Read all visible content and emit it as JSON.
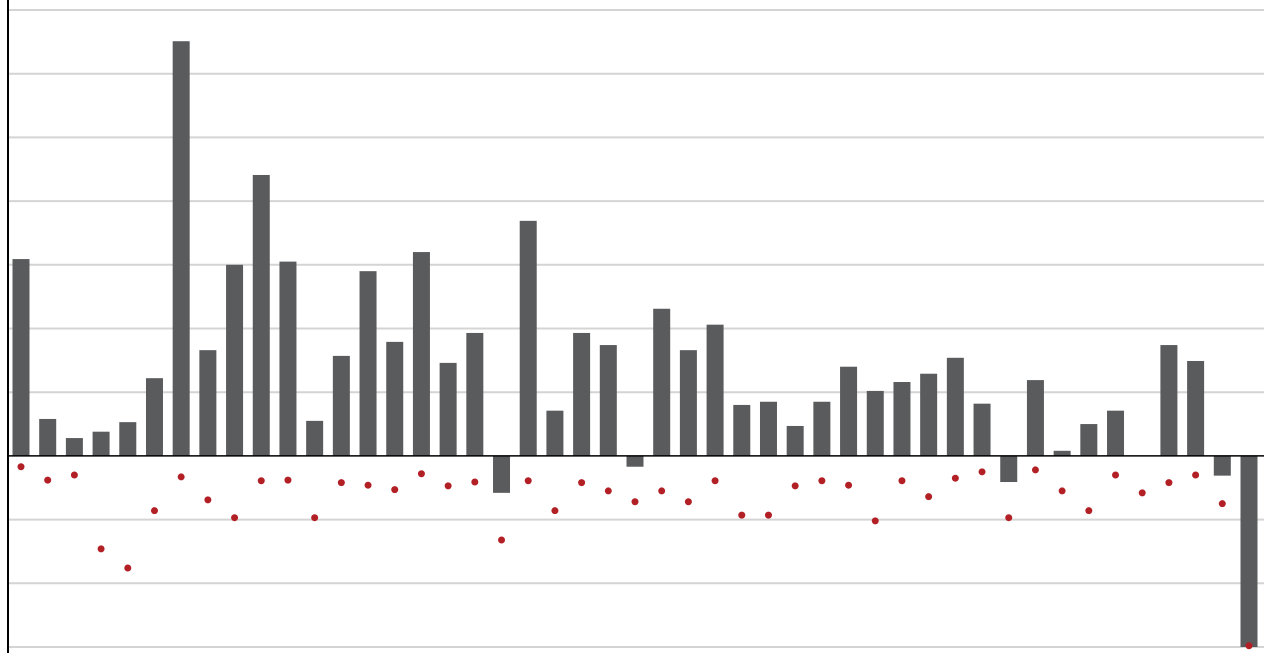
{
  "chart_data": {
    "type": "bar",
    "title": "",
    "xlabel": "",
    "ylabel": "",
    "ylim": [
      -3,
      7
    ],
    "grid": true,
    "legend": "none",
    "colors": {
      "bars": "#595b5d",
      "points": "#b22025",
      "grid": "#d4d4d4",
      "axis": "#000000"
    },
    "series": [
      {
        "type": "bar",
        "values": [
          3.09,
          0.58,
          0.28,
          0.38,
          0.53,
          1.22,
          6.51,
          1.66,
          3.0,
          4.41,
          3.05,
          0.55,
          1.57,
          2.9,
          1.79,
          3.2,
          1.46,
          1.93,
          -0.58,
          3.69,
          0.71,
          1.93,
          1.74,
          -0.17,
          2.31,
          1.66,
          2.06,
          0.8,
          0.85,
          0.47,
          0.85,
          1.4,
          1.02,
          1.16,
          1.29,
          1.54,
          0.82,
          -0.41,
          1.19,
          0.08,
          0.5,
          0.71,
          0,
          1.74,
          1.49,
          -0.31,
          -3.0
        ]
      },
      {
        "type": "scatter",
        "values": [
          -0.17,
          -0.38,
          -0.3,
          -1.46,
          -1.76,
          -0.86,
          -0.33,
          -0.69,
          -0.97,
          -0.39,
          -0.38,
          -0.97,
          -0.42,
          -0.46,
          -0.53,
          -0.28,
          -0.47,
          -0.41,
          -1.32,
          -0.39,
          -0.86,
          -0.42,
          -0.55,
          -0.72,
          -0.55,
          -0.72,
          -0.39,
          -0.93,
          -0.93,
          -0.47,
          -0.39,
          -0.46,
          -1.02,
          -0.39,
          -0.64,
          -0.35,
          -0.25,
          -0.97,
          -0.22,
          -0.55,
          -0.86,
          -0.3,
          -0.58,
          -0.42,
          -0.3,
          -0.75,
          -2.98
        ]
      }
    ]
  }
}
